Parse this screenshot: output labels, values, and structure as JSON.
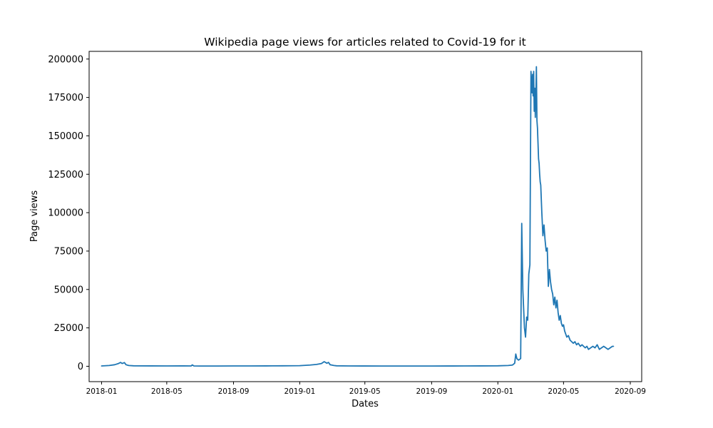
{
  "chart_data": {
    "type": "line",
    "title": "Wikipedia page views for articles related to Covid-19 for it",
    "xlabel": "Dates",
    "ylabel": "Page views",
    "x_type": "date",
    "xlim": [
      "2017-12-09",
      "2020-09-22"
    ],
    "ylim": [
      -10000,
      205000
    ],
    "xticks": [
      "2018-01",
      "2018-05",
      "2018-09",
      "2019-01",
      "2019-05",
      "2019-09",
      "2020-01",
      "2020-05",
      "2020-09"
    ],
    "yticks": [
      0,
      25000,
      50000,
      75000,
      100000,
      125000,
      150000,
      175000,
      200000
    ],
    "grid": false,
    "line_color": "#1f77b4",
    "series": [
      {
        "x": [
          "2018-01-01",
          "2018-01-15",
          "2018-01-25",
          "2018-02-01",
          "2018-02-05",
          "2018-02-08",
          "2018-02-12",
          "2018-02-15",
          "2018-02-20",
          "2018-03-01",
          "2018-04-01",
          "2018-05-01",
          "2018-06-01",
          "2018-06-15",
          "2018-06-17",
          "2018-06-20",
          "2018-07-01",
          "2018-08-01",
          "2018-09-01",
          "2018-10-01",
          "2018-11-01",
          "2018-12-01",
          "2019-01-01",
          "2019-01-20",
          "2019-02-01",
          "2019-02-10",
          "2019-02-15",
          "2019-02-20",
          "2019-02-23",
          "2019-02-26",
          "2019-03-01",
          "2019-03-05",
          "2019-03-10",
          "2019-04-01",
          "2019-05-01",
          "2019-06-01",
          "2019-07-01",
          "2019-08-01",
          "2019-09-01",
          "2019-10-01",
          "2019-11-01",
          "2019-12-01",
          "2020-01-01",
          "2020-01-20",
          "2020-01-28",
          "2020-02-01",
          "2020-02-03",
          "2020-02-05",
          "2020-02-08",
          "2020-02-12",
          "2020-02-14",
          "2020-02-16",
          "2020-02-19",
          "2020-02-21",
          "2020-02-23",
          "2020-02-25",
          "2020-02-27",
          "2020-02-29",
          "2020-03-02",
          "2020-03-04",
          "2020-03-05",
          "2020-03-06",
          "2020-03-07",
          "2020-03-08",
          "2020-03-09",
          "2020-03-10",
          "2020-03-11",
          "2020-03-12",
          "2020-03-13",
          "2020-03-14",
          "2020-03-15",
          "2020-03-16",
          "2020-03-17",
          "2020-03-18",
          "2020-03-19",
          "2020-03-20",
          "2020-03-22",
          "2020-03-24",
          "2020-03-26",
          "2020-03-28",
          "2020-03-30",
          "2020-04-01",
          "2020-04-03",
          "2020-04-05",
          "2020-04-07",
          "2020-04-09",
          "2020-04-11",
          "2020-04-13",
          "2020-04-15",
          "2020-04-17",
          "2020-04-19",
          "2020-04-21",
          "2020-04-23",
          "2020-04-25",
          "2020-04-27",
          "2020-04-29",
          "2020-05-01",
          "2020-05-03",
          "2020-05-05",
          "2020-05-07",
          "2020-05-10",
          "2020-05-13",
          "2020-05-16",
          "2020-05-19",
          "2020-05-22",
          "2020-05-25",
          "2020-05-28",
          "2020-06-01",
          "2020-06-04",
          "2020-06-07",
          "2020-06-10",
          "2020-06-13",
          "2020-06-16",
          "2020-06-20",
          "2020-06-24",
          "2020-06-28",
          "2020-07-02",
          "2020-07-06",
          "2020-07-10",
          "2020-07-14",
          "2020-07-18",
          "2020-07-22",
          "2020-07-26",
          "2020-07-30",
          "2020-08-01"
        ],
        "values": [
          200,
          500,
          1000,
          1800,
          2500,
          1800,
          2400,
          1000,
          500,
          300,
          250,
          200,
          250,
          200,
          900,
          200,
          150,
          150,
          200,
          200,
          250,
          300,
          400,
          800,
          1200,
          1800,
          3000,
          2000,
          2500,
          1000,
          800,
          500,
          300,
          200,
          180,
          170,
          160,
          160,
          170,
          180,
          200,
          250,
          300,
          500,
          800,
          2000,
          8000,
          5000,
          4000,
          5000,
          93000,
          50000,
          25000,
          19000,
          32000,
          30000,
          60000,
          66000,
          192000,
          178000,
          190000,
          176000,
          192000,
          166000,
          181000,
          162000,
          175000,
          195000,
          160000,
          155000,
          145000,
          135000,
          132000,
          125000,
          120000,
          118000,
          100000,
          85000,
          92000,
          82000,
          75000,
          77000,
          52000,
          63000,
          55000,
          50000,
          47000,
          40000,
          45000,
          38000,
          43000,
          35000,
          30000,
          33000,
          28000,
          26000,
          27000,
          23000,
          21000,
          19000,
          20000,
          17000,
          16000,
          15000,
          16000,
          14000,
          15000,
          13000,
          14000,
          13000,
          12000,
          13000,
          11000,
          12000,
          13000,
          12000,
          14000,
          11000,
          12000,
          13000,
          12000,
          11000,
          12000,
          13000,
          13000
        ]
      }
    ]
  }
}
